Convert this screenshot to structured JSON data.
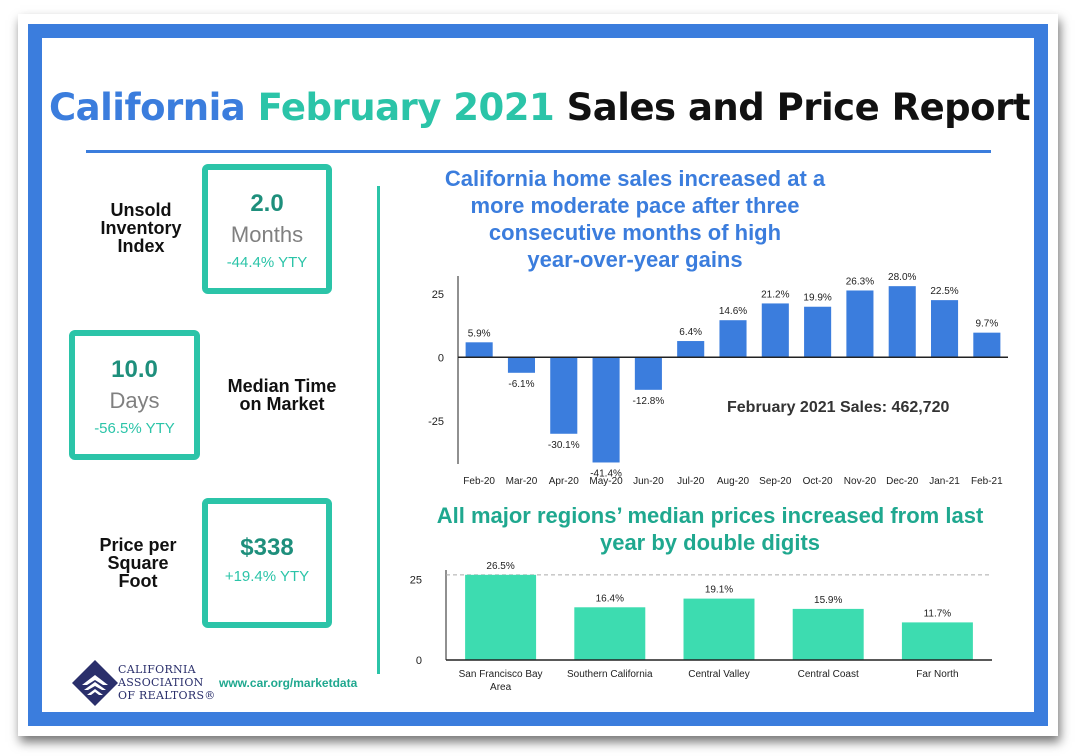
{
  "header": {
    "title_part1": "California",
    "title_part2": "February 2021",
    "title_part3": "Sales and Price Report"
  },
  "kpis": [
    {
      "label_lines": [
        "Unsold",
        "Inventory",
        "Index"
      ],
      "value": "2.0",
      "unit": "Months",
      "ytd": "-44.4% YTY"
    },
    {
      "label_lines": [
        "Median Time",
        "on Market"
      ],
      "value": "10.0",
      "unit": "Days",
      "ytd": "-56.5% YTY"
    },
    {
      "label_lines": [
        "Price per",
        "Square",
        "Foot"
      ],
      "value": "$338",
      "unit": "",
      "ytd": "+19.4% YTY"
    }
  ],
  "footer": {
    "org_lines": [
      "CALIFORNIA",
      "ASSOCIATION",
      "OF REALTORS®"
    ],
    "url": "www.car.org/marketdata"
  },
  "chart_data": [
    {
      "type": "bar",
      "title_lines": [
        "California home sales increased at a",
        "more moderate pace after three",
        "consecutive months of high",
        "year-over-year gains"
      ],
      "categories": [
        "Feb-20",
        "Mar-20",
        "Apr-20",
        "May-20",
        "Jun-20",
        "Jul-20",
        "Aug-20",
        "Sep-20",
        "Oct-20",
        "Nov-20",
        "Dec-20",
        "Jan-21",
        "Feb-21"
      ],
      "values": [
        5.9,
        -6.1,
        -30.1,
        -41.4,
        -12.8,
        6.4,
        14.6,
        21.2,
        19.9,
        26.3,
        28.0,
        22.5,
        9.7
      ],
      "data_labels": [
        "5.9%",
        "-6.1%",
        "-30.1%",
        "-41.4%",
        "-12.8%",
        "6.4%",
        "14.6%",
        "21.2%",
        "19.9%",
        "26.3%",
        "28.0%",
        "22.5%",
        "9.7%"
      ],
      "yticks": [
        25,
        0,
        -25
      ],
      "ylim": [
        -42,
        32
      ],
      "annotation": "February 2021 Sales: 462,720",
      "bar_color": "#3b7ddd",
      "grid": false
    },
    {
      "type": "bar",
      "title_lines": [
        "All major regions’ median prices increased from last",
        "year by double digits"
      ],
      "categories": [
        [
          "San Francisco Bay",
          "Area"
        ],
        [
          "Southern California"
        ],
        [
          "Central Valley"
        ],
        [
          "Central Coast"
        ],
        [
          "Far North"
        ]
      ],
      "values": [
        26.5,
        16.4,
        19.1,
        15.9,
        11.7
      ],
      "data_labels": [
        "26.5%",
        "16.4%",
        "19.1%",
        "15.9%",
        "11.7%"
      ],
      "yticks": [
        25,
        0
      ],
      "ylim": [
        0,
        28
      ],
      "reference_line": 26.5,
      "bar_color": "#3ddcb0",
      "grid": false
    }
  ]
}
